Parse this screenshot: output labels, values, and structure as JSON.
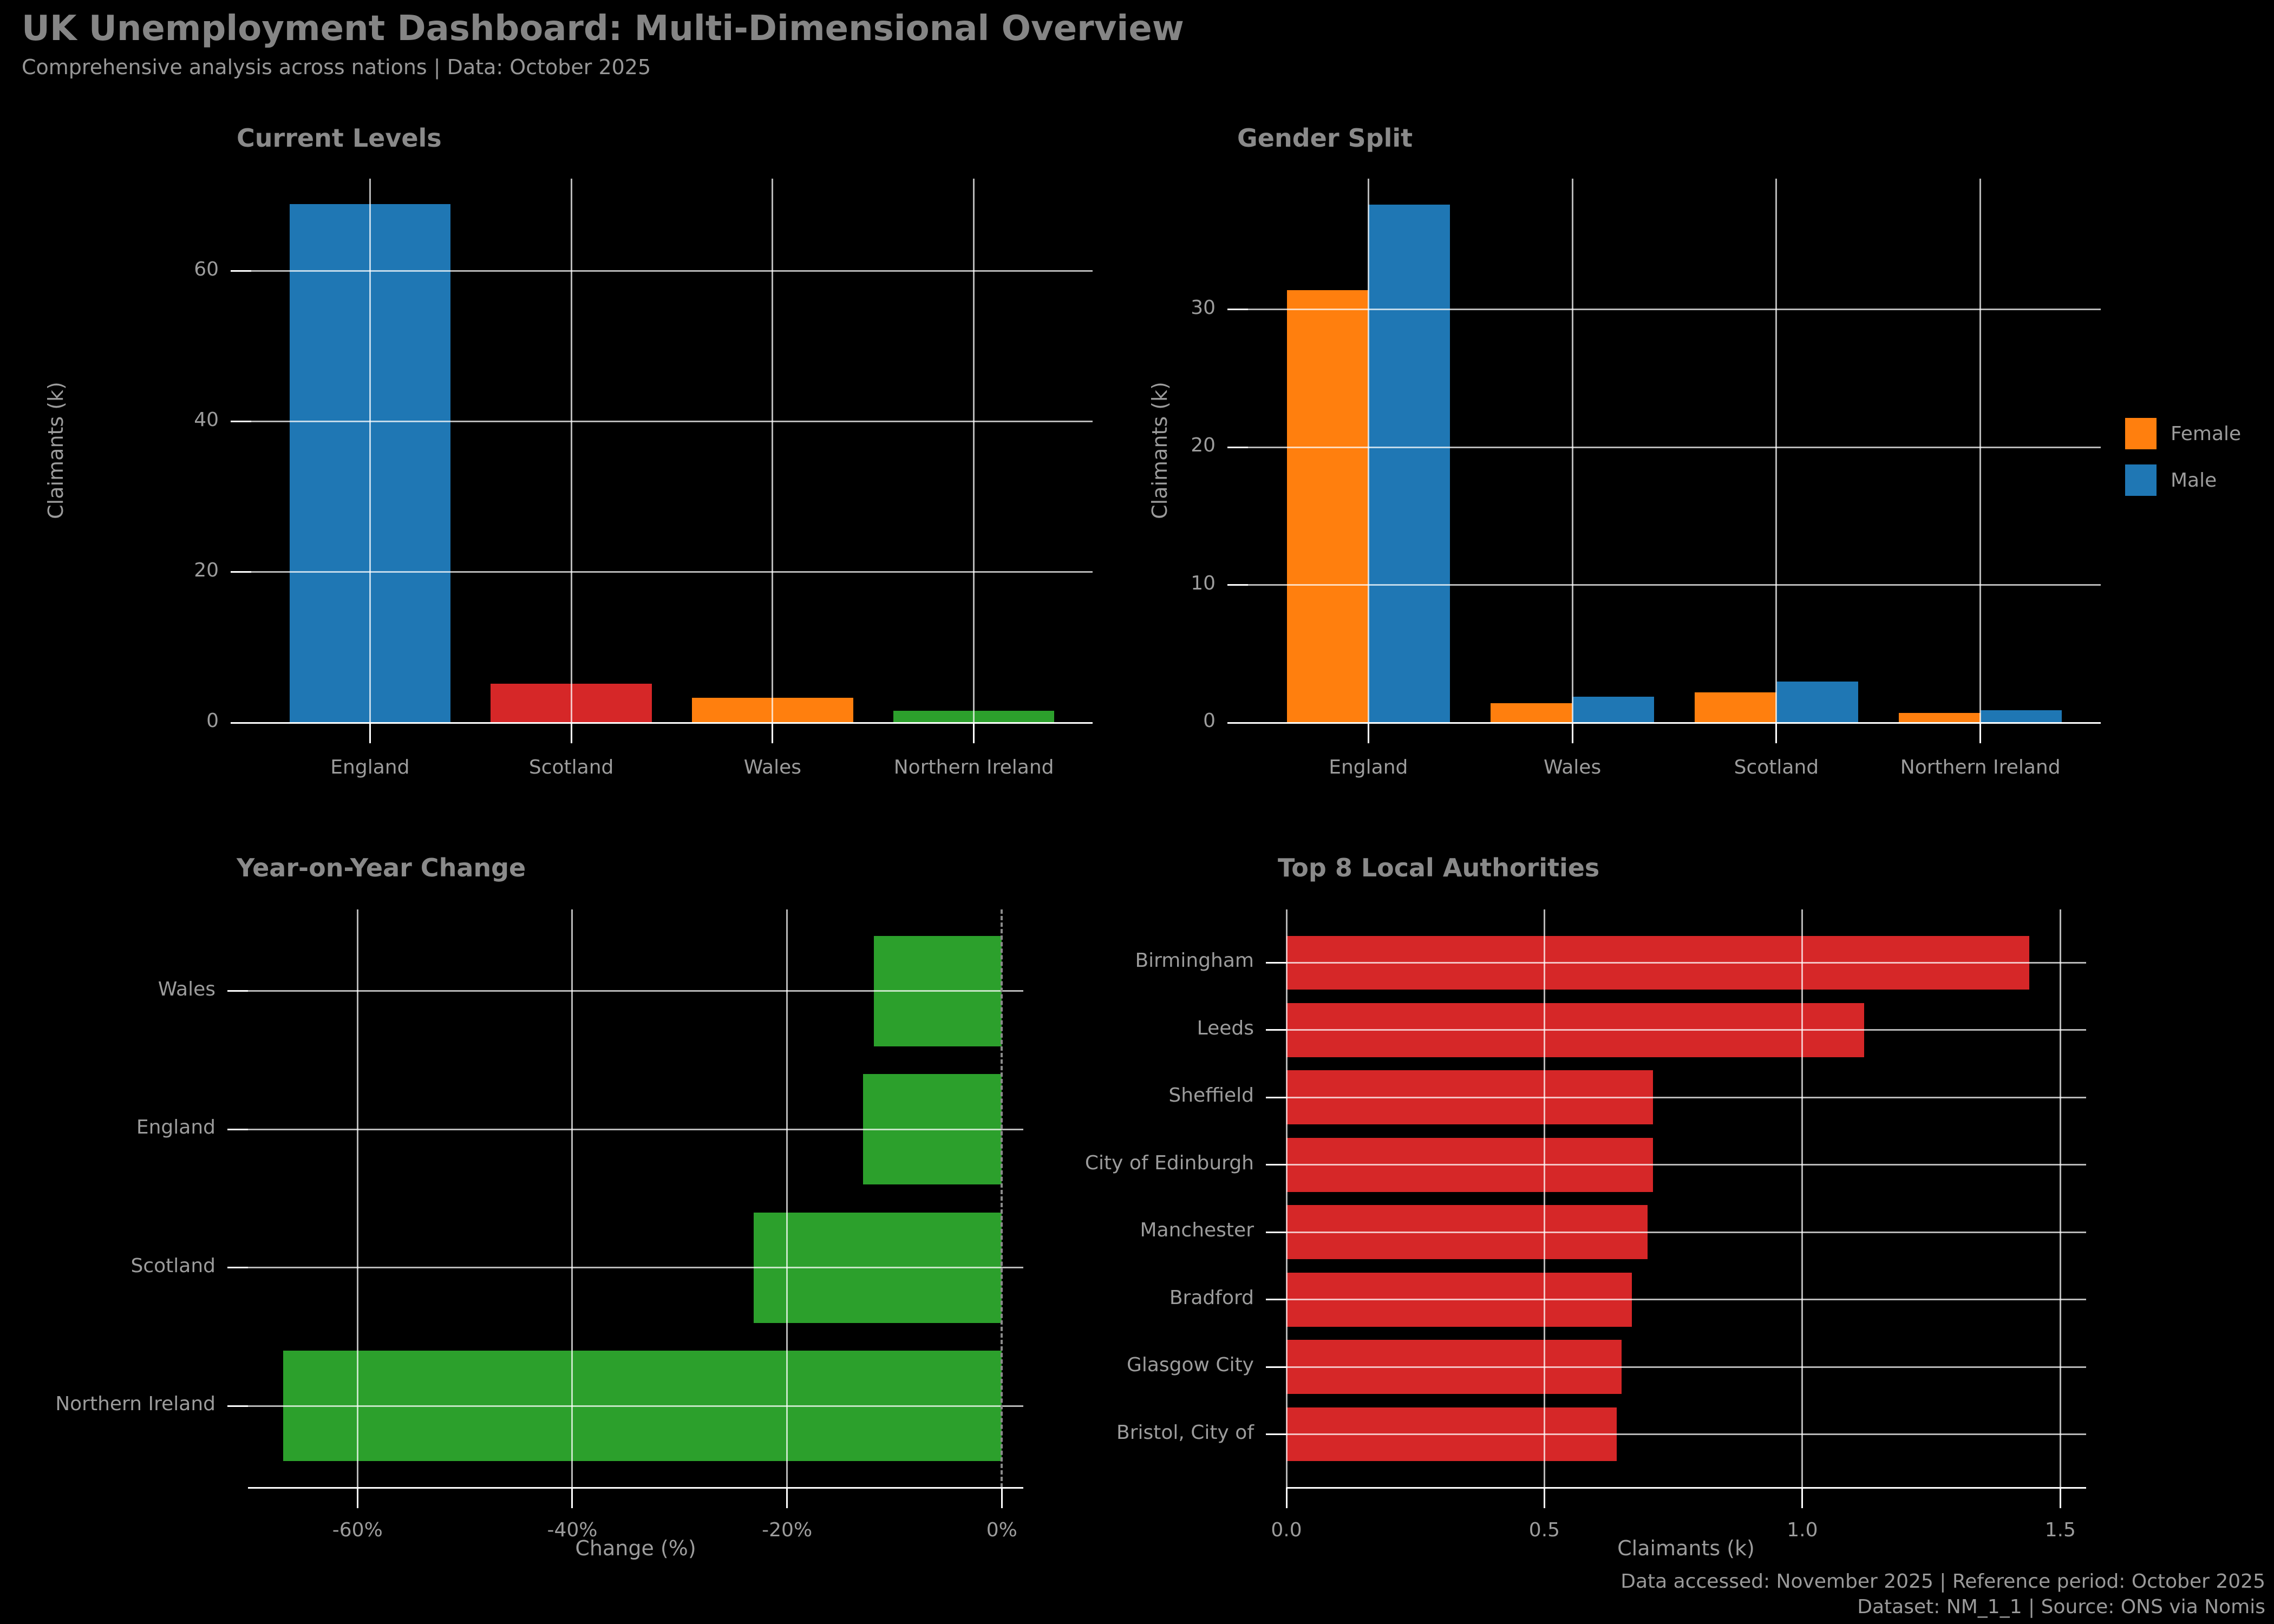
{
  "header": {
    "title": "UK Unemployment Dashboard: Multi-Dimensional Overview",
    "subtitle": "Comprehensive analysis across nations | Data: October 2025"
  },
  "footer": {
    "line1": "Data accessed: November 2025 | Reference period: October 2025",
    "line2": "Dataset: NM_1_1 | Source: ONS via Nomis"
  },
  "colors": {
    "background": "#000000",
    "grid": "#ffffff",
    "text": "#9c9c9c",
    "title_text": "#8a8a8a",
    "blue": "#1f77b4",
    "orange": "#ff7f0e",
    "red": "#d62728",
    "green": "#2ca02c"
  },
  "chart_data": [
    {
      "id": "current-levels",
      "type": "bar",
      "title": "Current Levels",
      "ylabel": "Claimants (k)",
      "categories": [
        "England",
        "Scotland",
        "Wales",
        "Northern Ireland"
      ],
      "values": [
        68.9,
        5.2,
        3.3,
        1.6
      ],
      "bar_colors": [
        "#1f77b4",
        "#d62728",
        "#ff7f0e",
        "#2ca02c"
      ],
      "yticks": [
        0,
        20,
        40,
        60
      ],
      "ytick_labels": [
        "0",
        "20",
        "40",
        "60"
      ],
      "ylim": [
        0,
        72.3
      ],
      "grid": "both"
    },
    {
      "id": "gender-split",
      "type": "bar",
      "title": "Gender Split",
      "ylabel": "Claimants (k)",
      "categories": [
        "England",
        "Wales",
        "Scotland",
        "Northern Ireland"
      ],
      "series": [
        {
          "name": "Female",
          "color": "#ff7f0e",
          "values": [
            31.4,
            1.4,
            2.2,
            0.7
          ]
        },
        {
          "name": "Male",
          "color": "#1f77b4",
          "values": [
            37.6,
            1.9,
            3.0,
            0.9
          ]
        }
      ],
      "yticks": [
        0,
        10,
        20,
        30
      ],
      "ytick_labels": [
        "0",
        "10",
        "20",
        "30"
      ],
      "ylim": [
        0,
        39.5
      ],
      "legend_position": "right of plot",
      "grid": "both"
    },
    {
      "id": "yoy-change",
      "type": "barh",
      "title": "Year-on-Year Change",
      "xlabel": "Change (%)",
      "categories": [
        "Wales",
        "England",
        "Scotland",
        "Northern Ireland"
      ],
      "values": [
        -11.9,
        -12.9,
        -23.1,
        -66.9
      ],
      "bar_color": "#2ca02c",
      "xticks": [
        -60,
        -40,
        -20,
        0
      ],
      "xtick_labels": [
        "-60%",
        "-40%",
        "-20%",
        "0%"
      ],
      "xlim": [
        -70.2,
        2.0
      ],
      "zero_line_dashed": true,
      "grid": "both"
    },
    {
      "id": "top-authorities",
      "type": "barh",
      "title": "Top 8 Local Authorities",
      "xlabel": "Claimants (k)",
      "categories": [
        "Birmingham",
        "Leeds",
        "Sheffield",
        "City of Edinburgh",
        "Manchester",
        "Bradford",
        "Glasgow City",
        "Bristol, City of"
      ],
      "values": [
        1.44,
        1.12,
        0.71,
        0.71,
        0.7,
        0.67,
        0.65,
        0.64
      ],
      "bar_color": "#d62728",
      "xticks": [
        0,
        0.5,
        1.0,
        1.5
      ],
      "xtick_labels": [
        "0.0",
        "0.5",
        "1.0",
        "1.5"
      ],
      "xlim": [
        0,
        1.55
      ],
      "grid": "both"
    }
  ]
}
